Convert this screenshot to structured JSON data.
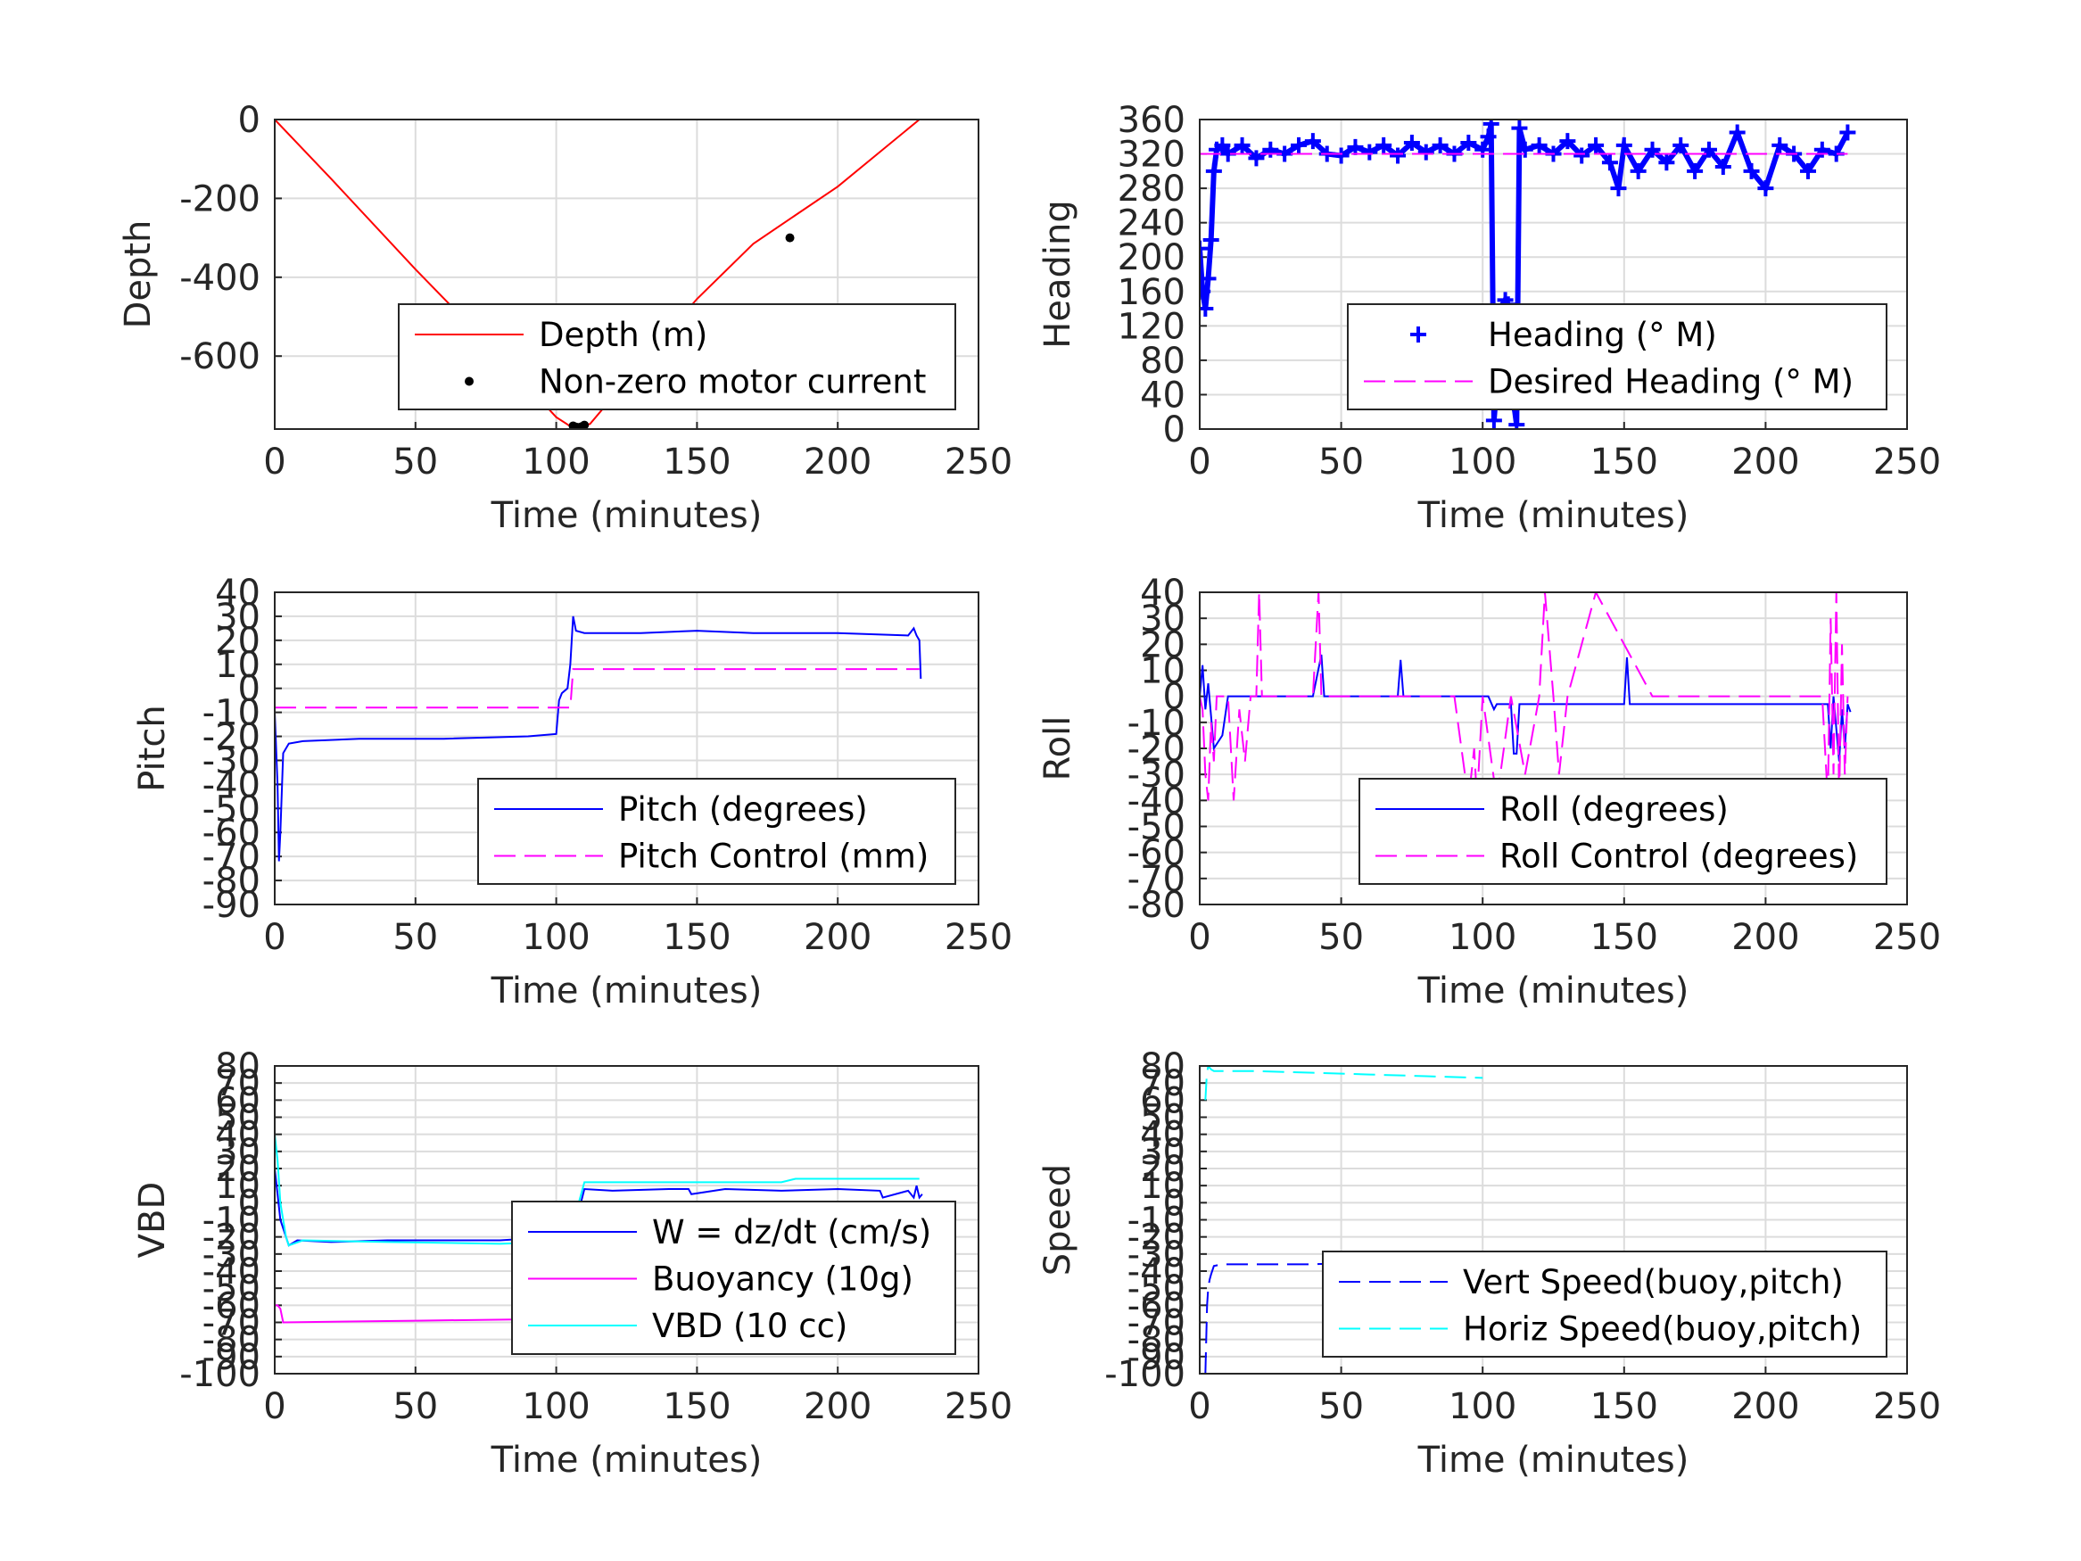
{
  "chart_data": [
    {
      "type": "line",
      "ylabel": "Depth",
      "xlabel": "Time (minutes)",
      "xlim": [
        0,
        250
      ],
      "ylim": [
        -785,
        0
      ],
      "xticks": [
        "0",
        "50",
        "100",
        "150",
        "200",
        "250"
      ],
      "yticks": [
        {
          "v": 0,
          "t": "0"
        },
        {
          "v": -200,
          "t": "-200"
        },
        {
          "v": -400,
          "t": "-400"
        },
        {
          "v": -600,
          "t": "-600"
        }
      ],
      "grid": true,
      "legend_position": "bottom-right",
      "series": [
        {
          "name": "Depth (m)",
          "style": "line",
          "color": "#ff0000",
          "x": [
            0,
            20,
            50,
            80,
            100,
            105,
            108,
            112,
            130,
            150,
            170,
            200,
            229
          ],
          "y": [
            0,
            -150,
            -380,
            -600,
            -755,
            -778,
            -782,
            -772,
            -620,
            -455,
            -315,
            -170,
            0
          ]
        },
        {
          "name": "Non-zero motor current",
          "style": "dots",
          "color": "#000000",
          "x": [
            106,
            107,
            108,
            109,
            110,
            147,
            183
          ],
          "y": [
            -777,
            -780,
            -781,
            -779,
            -775,
            -520,
            -300
          ]
        }
      ]
    },
    {
      "type": "scatter",
      "ylabel": "Heading",
      "xlabel": "Time (minutes)",
      "xlim": [
        0,
        250
      ],
      "ylim": [
        0,
        360
      ],
      "xticks": [
        "0",
        "50",
        "100",
        "150",
        "200",
        "250"
      ],
      "yticks": [
        {
          "v": 0,
          "t": "0"
        },
        {
          "v": 40,
          "t": "40"
        },
        {
          "v": 80,
          "t": "80"
        },
        {
          "v": 120,
          "t": "120"
        },
        {
          "v": 160,
          "t": "160"
        },
        {
          "v": 200,
          "t": "200"
        },
        {
          "v": 240,
          "t": "240"
        },
        {
          "v": 280,
          "t": "280"
        },
        {
          "v": 320,
          "t": "320"
        },
        {
          "v": 360,
          "t": "360"
        }
      ],
      "grid": true,
      "legend_position": "bottom-right",
      "series": [
        {
          "name": "Heading (° M)",
          "style": "plus",
          "color": "#0000ff",
          "x": [
            0,
            1,
            2,
            3,
            4,
            5,
            6,
            8,
            10,
            15,
            20,
            25,
            30,
            35,
            40,
            45,
            50,
            55,
            60,
            65,
            70,
            75,
            80,
            85,
            90,
            95,
            100,
            102,
            103,
            104,
            105,
            106,
            107,
            108,
            109,
            110,
            111,
            112,
            113,
            115,
            120,
            125,
            130,
            135,
            140,
            145,
            148,
            150,
            155,
            160,
            165,
            170,
            175,
            180,
            185,
            190,
            195,
            200,
            205,
            210,
            215,
            220,
            225,
            229
          ],
          "y": [
            210,
            160,
            140,
            175,
            220,
            300,
            325,
            330,
            320,
            330,
            315,
            325,
            320,
            330,
            335,
            320,
            318,
            328,
            322,
            330,
            318,
            333,
            322,
            330,
            320,
            333,
            325,
            340,
            355,
            10,
            50,
            100,
            140,
            150,
            145,
            90,
            30,
            5,
            350,
            325,
            330,
            320,
            335,
            318,
            330,
            310,
            280,
            330,
            300,
            325,
            310,
            330,
            300,
            325,
            305,
            345,
            300,
            280,
            330,
            320,
            300,
            325,
            320,
            345
          ]
        },
        {
          "name": "Desired Heading (° M)",
          "style": "dash",
          "color": "#ff00ff",
          "x": [
            0,
            229
          ],
          "y": [
            320,
            320
          ]
        }
      ]
    },
    {
      "type": "line",
      "ylabel": "Pitch",
      "xlabel": "Time (minutes)",
      "xlim": [
        0,
        250
      ],
      "ylim": [
        -90,
        40
      ],
      "xticks": [
        "0",
        "50",
        "100",
        "150",
        "200",
        "250"
      ],
      "yticks": [
        {
          "v": 40,
          "t": "40"
        },
        {
          "v": 30,
          "t": "30"
        },
        {
          "v": 20,
          "t": "20"
        },
        {
          "v": 10,
          "t": "10"
        },
        {
          "v": 0,
          "t": "0"
        },
        {
          "v": -10,
          "t": "-10"
        },
        {
          "v": -20,
          "t": "-20"
        },
        {
          "v": -30,
          "t": "-30"
        },
        {
          "v": -40,
          "t": "-40"
        },
        {
          "v": -50,
          "t": "-50"
        },
        {
          "v": -60,
          "t": "-60"
        },
        {
          "v": -70,
          "t": "-70"
        },
        {
          "v": -80,
          "t": "-80"
        },
        {
          "v": -90,
          "t": "-90"
        }
      ],
      "grid": true,
      "legend_position": "bottom-right",
      "series": [
        {
          "name": "Pitch (degrees)",
          "style": "line",
          "color": "#0000ff",
          "x": [
            0,
            1,
            1.5,
            2,
            3,
            5,
            10,
            30,
            60,
            90,
            100,
            101,
            102,
            104,
            105,
            106,
            107,
            110,
            130,
            150,
            170,
            200,
            225,
            227,
            228,
            229,
            229.5
          ],
          "y": [
            -10,
            -40,
            -72,
            -60,
            -27,
            -23,
            -22,
            -21,
            -21,
            -20,
            -19,
            -5,
            -2,
            0,
            10,
            30,
            24,
            23,
            23,
            24,
            23,
            23,
            22,
            25,
            22,
            20,
            4
          ]
        },
        {
          "name": "Pitch Control (mm)",
          "style": "dash",
          "color": "#ff00ff",
          "x": [
            0,
            100,
            105,
            106,
            229
          ],
          "y": [
            -8,
            -8,
            -8,
            8,
            8
          ]
        }
      ]
    },
    {
      "type": "line",
      "ylabel": "Roll",
      "xlabel": "Time (minutes)",
      "xlim": [
        0,
        250
      ],
      "ylim": [
        -80,
        40
      ],
      "xticks": [
        "0",
        "50",
        "100",
        "150",
        "200",
        "250"
      ],
      "yticks": [
        {
          "v": 40,
          "t": "40"
        },
        {
          "v": 30,
          "t": "30"
        },
        {
          "v": 20,
          "t": "20"
        },
        {
          "v": 10,
          "t": "10"
        },
        {
          "v": 0,
          "t": "0"
        },
        {
          "v": -10,
          "t": "-10"
        },
        {
          "v": -20,
          "t": "-20"
        },
        {
          "v": -30,
          "t": "-30"
        },
        {
          "v": -40,
          "t": "-40"
        },
        {
          "v": -50,
          "t": "-50"
        },
        {
          "v": -60,
          "t": "-60"
        },
        {
          "v": -70,
          "t": "-70"
        },
        {
          "v": -80,
          "t": "-80"
        }
      ],
      "grid": true,
      "legend_position": "bottom-right",
      "series": [
        {
          "name": "Roll (degrees)",
          "style": "line",
          "color": "#0000ff",
          "x": [
            0,
            1,
            2,
            3,
            5,
            8,
            10,
            15,
            20,
            30,
            40,
            43,
            44,
            45,
            60,
            70,
            71,
            72,
            80,
            90,
            100,
            102,
            104,
            105,
            110,
            111,
            112,
            113,
            120,
            125,
            128,
            130,
            140,
            150,
            151,
            152,
            160,
            170,
            180,
            190,
            200,
            210,
            220,
            222,
            223,
            224,
            226,
            227,
            228,
            229,
            230
          ],
          "y": [
            0,
            12,
            -5,
            5,
            -20,
            -15,
            0,
            0,
            0,
            0,
            0,
            16,
            0,
            0,
            0,
            0,
            14,
            0,
            0,
            0,
            0,
            0,
            -5,
            -3,
            -3,
            -22,
            -22,
            -3,
            -3,
            -3,
            -3,
            -3,
            -3,
            -3,
            15,
            -3,
            -3,
            -3,
            -3,
            -3,
            -3,
            -3,
            -3,
            -3,
            -20,
            0,
            -25,
            -5,
            -20,
            -3,
            -6
          ]
        },
        {
          "name": "Roll Control (degrees)",
          "style": "dash",
          "color": "#ff00ff",
          "x": [
            0,
            1,
            2,
            3,
            4,
            5,
            6,
            10,
            12,
            14,
            16,
            18,
            20,
            21,
            22,
            23,
            24,
            30,
            40,
            42,
            43,
            44,
            50,
            60,
            70,
            90,
            95,
            97,
            98,
            100,
            105,
            110,
            115,
            120,
            122,
            125,
            127,
            130,
            140,
            160,
            200,
            220,
            222,
            223,
            224,
            225,
            226,
            227,
            228,
            229
          ],
          "y": [
            0,
            -5,
            -30,
            -40,
            -10,
            -25,
            0,
            0,
            -40,
            -5,
            -25,
            0,
            0,
            40,
            0,
            0,
            0,
            0,
            0,
            40,
            0,
            0,
            0,
            0,
            0,
            0,
            -40,
            -20,
            -40,
            0,
            -40,
            0,
            -30,
            0,
            40,
            0,
            -30,
            0,
            40,
            0,
            0,
            0,
            -40,
            30,
            -30,
            40,
            -40,
            20,
            -30,
            0
          ]
        }
      ]
    },
    {
      "type": "line",
      "ylabel": "VBD",
      "xlabel": "Time (minutes)",
      "xlim": [
        0,
        250
      ],
      "ylim": [
        -100,
        80
      ],
      "xticks": [
        "0",
        "50",
        "100",
        "150",
        "200",
        "250"
      ],
      "yticks": [
        {
          "v": 80,
          "t": "80"
        },
        {
          "v": 70,
          "t": "70"
        },
        {
          "v": 60,
          "t": "60"
        },
        {
          "v": 50,
          "t": "50"
        },
        {
          "v": 40,
          "t": "40"
        },
        {
          "v": 30,
          "t": "30"
        },
        {
          "v": 20,
          "t": "20"
        },
        {
          "v": 10,
          "t": "10"
        },
        {
          "v": 0,
          "t": "0"
        },
        {
          "v": -10,
          "t": "-10"
        },
        {
          "v": -20,
          "t": "-20"
        },
        {
          "v": -30,
          "t": "-30"
        },
        {
          "v": -40,
          "t": "-40"
        },
        {
          "v": -50,
          "t": "-50"
        },
        {
          "v": -60,
          "t": "-60"
        },
        {
          "v": -70,
          "t": "-70"
        },
        {
          "v": -80,
          "t": "-80"
        },
        {
          "v": -90,
          "t": "-90"
        },
        {
          "v": -100,
          "t": "-100"
        }
      ],
      "grid": true,
      "legend_position": "bottom-right",
      "series": [
        {
          "name": "W = dz/dt (cm/s)",
          "style": "line",
          "color": "#0000ff",
          "x": [
            0,
            1,
            2,
            3,
            4,
            5,
            8,
            20,
            40,
            60,
            80,
            100,
            102,
            105,
            108,
            110,
            120,
            140,
            147,
            148,
            160,
            180,
            200,
            215,
            216,
            225,
            227,
            228,
            229,
            230
          ],
          "y": [
            20,
            5,
            -10,
            -15,
            -20,
            -25,
            -22,
            -23,
            -22,
            -22,
            -22,
            -20,
            -18,
            -12,
            -5,
            8,
            7,
            8,
            8,
            5,
            8,
            7,
            8,
            7,
            3,
            7,
            3,
            10,
            3,
            5
          ]
        },
        {
          "name": "Buoyancy (10g)",
          "style": "line",
          "color": "#ff00ff",
          "x": [
            0,
            1,
            2,
            3,
            50,
            100
          ],
          "y": [
            -60,
            -60,
            -62,
            -70,
            -69,
            -68
          ]
        },
        {
          "name": "VBD (10 cc)",
          "style": "line",
          "color": "#00ffff",
          "x": [
            0,
            1,
            2,
            3,
            4,
            5,
            10,
            40,
            80,
            100,
            103,
            105,
            108,
            110,
            150,
            180,
            185,
            229
          ],
          "y": [
            40,
            25,
            0,
            -10,
            -20,
            -25,
            -22,
            -23,
            -24,
            -23,
            -18,
            -10,
            0,
            12,
            12,
            12,
            14,
            14
          ]
        }
      ]
    },
    {
      "type": "line",
      "ylabel": "Speed",
      "xlabel": "Time (minutes)",
      "xlim": [
        0,
        250
      ],
      "ylim": [
        -100,
        80
      ],
      "xticks": [
        "0",
        "50",
        "100",
        "150",
        "200",
        "250"
      ],
      "yticks": [
        {
          "v": 80,
          "t": "80"
        },
        {
          "v": 70,
          "t": "70"
        },
        {
          "v": 60,
          "t": "60"
        },
        {
          "v": 50,
          "t": "50"
        },
        {
          "v": 40,
          "t": "40"
        },
        {
          "v": 30,
          "t": "30"
        },
        {
          "v": 20,
          "t": "20"
        },
        {
          "v": 10,
          "t": "10"
        },
        {
          "v": 0,
          "t": "0"
        },
        {
          "v": -10,
          "t": "-10"
        },
        {
          "v": -20,
          "t": "-20"
        },
        {
          "v": -30,
          "t": "-30"
        },
        {
          "v": -40,
          "t": "-40"
        },
        {
          "v": -50,
          "t": "-50"
        },
        {
          "v": -60,
          "t": "-60"
        },
        {
          "v": -70,
          "t": "-70"
        },
        {
          "v": -80,
          "t": "-80"
        },
        {
          "v": -90,
          "t": "-90"
        },
        {
          "v": -100,
          "t": "-100"
        }
      ],
      "grid": true,
      "legend_position": "bottom-right",
      "series": [
        {
          "name": "Vert Speed(buoy,pitch)",
          "style": "dash",
          "color": "#0000ff",
          "x": [
            2,
            2.3,
            2.6,
            3,
            3.5,
            4,
            5,
            8,
            20,
            40,
            60,
            80,
            100
          ],
          "y": [
            -100,
            -80,
            -60,
            -50,
            -45,
            -42,
            -37,
            -36,
            -36,
            -36,
            -35,
            -34,
            -32
          ]
        },
        {
          "name": "Horiz Speed(buoy,pitch)",
          "style": "dash",
          "color": "#00ffff",
          "x": [
            2,
            2.5,
            3,
            4,
            5,
            10,
            20,
            40,
            60,
            80,
            100
          ],
          "y": [
            60,
            75,
            80,
            78,
            77,
            77,
            77,
            76,
            75,
            74,
            73
          ]
        }
      ]
    }
  ]
}
